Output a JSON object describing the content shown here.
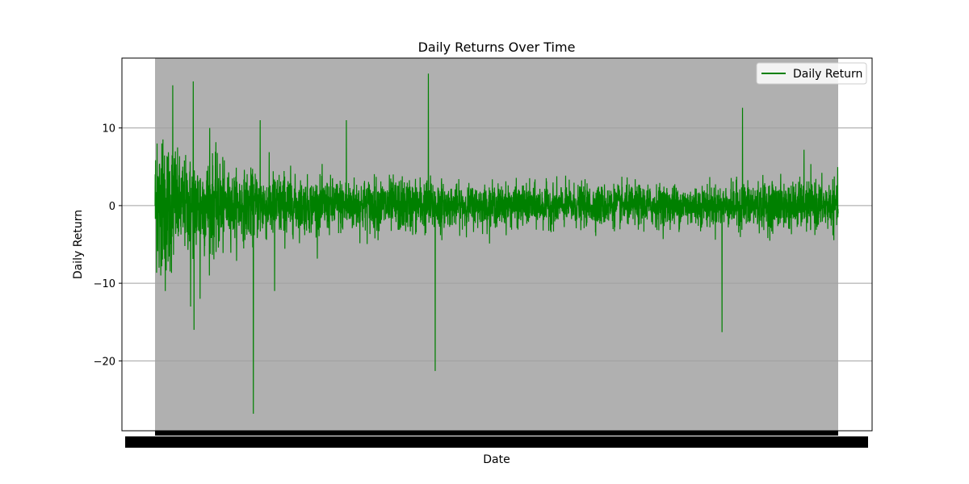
{
  "chart_data": {
    "type": "line",
    "title": "Daily Returns Over Time",
    "xlabel": "Date",
    "ylabel": "Daily Return",
    "ylim": [
      -29,
      19
    ],
    "yticks": [
      10,
      0,
      -10,
      -20
    ],
    "grid": "y",
    "legend_position": "top-right",
    "series": [
      {
        "name": "Daily Return",
        "color": "#008000",
        "points": 4400,
        "values_sample": [
          [
            0.0,
            0
          ],
          [
            0.003,
            8
          ],
          [
            0.006,
            -8
          ],
          [
            0.01,
            8
          ],
          [
            0.015,
            -11
          ],
          [
            0.026,
            15.5
          ],
          [
            0.052,
            -13
          ],
          [
            0.056,
            16
          ],
          [
            0.057,
            -16
          ],
          [
            0.066,
            -12
          ],
          [
            0.08,
            10
          ],
          [
            0.144,
            -26.8
          ],
          [
            0.154,
            11
          ],
          [
            0.175,
            -11
          ],
          [
            0.28,
            11
          ],
          [
            0.4,
            17
          ],
          [
            0.41,
            -21.3
          ],
          [
            0.83,
            -16.3
          ],
          [
            0.86,
            12.6
          ],
          [
            0.95,
            7.2
          ],
          [
            1.0,
            -1
          ]
        ]
      }
    ],
    "plot_background": "#b0b0b0",
    "axes_background": "#ffffff"
  }
}
